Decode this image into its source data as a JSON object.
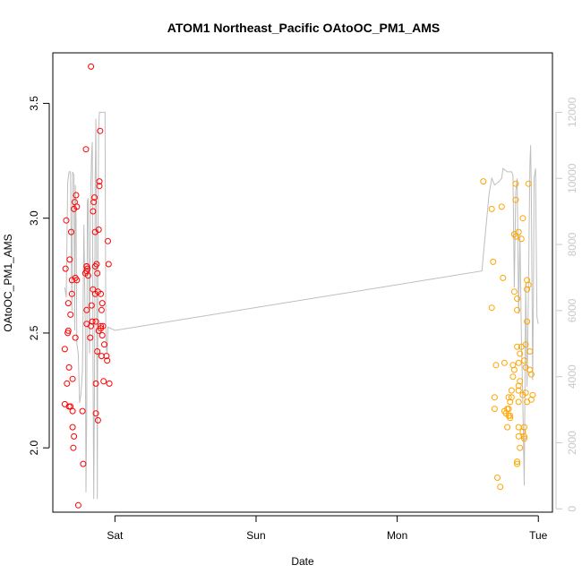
{
  "chart_data": {
    "type": "scatter",
    "title": "ATOM1 Northeast_Pacific OAtoOC_PM1_AMS",
    "xlabel": "Date",
    "ylabel": "OAtoOC_PM1_AMS",
    "x_ticks": [
      {
        "label": "Sat",
        "x": 0.0
      },
      {
        "label": "Sun",
        "x": 1.0
      },
      {
        "label": "Mon",
        "x": 2.0
      },
      {
        "label": "Tue",
        "x": 3.0
      }
    ],
    "xlim": [
      -0.44,
      3.1
    ],
    "ylim": [
      1.72,
      3.72
    ],
    "y_ticks": [
      "2.0",
      "2.5",
      "3.0",
      "3.5"
    ],
    "y2lim": [
      -100,
      13800
    ],
    "y2_ticks": [
      "0",
      "2000",
      "4000",
      "6000",
      "8000",
      "10000",
      "12000"
    ],
    "colors": {
      "red": "#ff0000",
      "orange": "#ffa500",
      "line": "#bebebe",
      "axis2": "#c8c8c8"
    },
    "series": [
      {
        "color": "red",
        "points": [
          [
            -0.355,
            2.19
          ],
          [
            -0.355,
            2.43
          ],
          [
            -0.35,
            2.78
          ],
          [
            -0.345,
            2.99
          ],
          [
            -0.34,
            2.28
          ],
          [
            -0.335,
            2.5
          ],
          [
            -0.33,
            2.51
          ],
          [
            -0.33,
            2.63
          ],
          [
            -0.325,
            2.35
          ],
          [
            -0.325,
            2.18
          ],
          [
            -0.32,
            2.82
          ],
          [
            -0.315,
            2.18
          ],
          [
            -0.315,
            2.58
          ],
          [
            -0.31,
            2.94
          ],
          [
            -0.305,
            2.73
          ],
          [
            -0.305,
            2.67
          ],
          [
            -0.3,
            2.3
          ],
          [
            -0.3,
            2.16
          ],
          [
            -0.3,
            2.09
          ],
          [
            -0.295,
            2.0
          ],
          [
            -0.29,
            2.05
          ],
          [
            -0.29,
            3.04
          ],
          [
            -0.285,
            3.07
          ],
          [
            -0.28,
            2.74
          ],
          [
            -0.28,
            2.48
          ],
          [
            -0.275,
            3.1
          ],
          [
            -0.27,
            3.05
          ],
          [
            -0.26,
            1.75
          ],
          [
            -0.23,
            2.16
          ],
          [
            -0.225,
            1.93
          ],
          [
            -0.21,
            2.76
          ],
          [
            -0.205,
            3.3
          ],
          [
            -0.2,
            2.77
          ],
          [
            -0.2,
            2.6
          ],
          [
            -0.2,
            2.54
          ],
          [
            -0.195,
            2.78
          ],
          [
            -0.19,
            2.75
          ],
          [
            -0.175,
            2.48
          ],
          [
            -0.17,
            2.53
          ],
          [
            -0.165,
            2.62
          ],
          [
            -0.16,
            2.55
          ],
          [
            -0.155,
            2.69
          ],
          [
            -0.155,
            3.03
          ],
          [
            -0.15,
            3.07
          ],
          [
            -0.145,
            3.09
          ],
          [
            -0.14,
            2.94
          ],
          [
            -0.14,
            2.67
          ],
          [
            -0.135,
            2.15
          ],
          [
            -0.135,
            2.28
          ],
          [
            -0.135,
            2.55
          ],
          [
            -0.13,
            2.8
          ],
          [
            -0.125,
            2.76
          ],
          [
            -0.125,
            2.42
          ],
          [
            -0.12,
            2.12
          ],
          [
            -0.115,
            2.95
          ],
          [
            -0.115,
            2.51
          ],
          [
            -0.11,
            3.14
          ],
          [
            -0.105,
            3.38
          ],
          [
            -0.1,
            2.67
          ],
          [
            -0.1,
            2.53
          ],
          [
            -0.095,
            2.6
          ],
          [
            -0.09,
            2.63
          ],
          [
            -0.085,
            2.53
          ],
          [
            -0.08,
            2.29
          ],
          [
            -0.075,
            2.45
          ],
          [
            -0.06,
            2.4
          ],
          [
            -0.055,
            2.38
          ],
          [
            -0.05,
            2.9
          ],
          [
            -0.045,
            2.8
          ],
          [
            -0.04,
            2.28
          ],
          [
            -0.17,
            3.66
          ],
          [
            -0.2,
            2.79
          ],
          [
            -0.12,
            2.68
          ],
          [
            -0.09,
            2.49
          ],
          [
            -0.11,
            3.16
          ],
          [
            -0.14,
            2.79
          ],
          [
            -0.1,
            2.52
          ],
          [
            -0.095,
            2.4
          ],
          [
            -0.27,
            2.73
          ],
          [
            -0.2,
            2.79
          ]
        ]
      },
      {
        "color": "orange",
        "points": [
          [
            2.61,
            3.16
          ],
          [
            2.67,
            3.04
          ],
          [
            2.68,
            2.81
          ],
          [
            2.67,
            2.61
          ],
          [
            2.69,
            2.22
          ],
          [
            2.69,
            2.17
          ],
          [
            2.7,
            2.36
          ],
          [
            2.71,
            1.87
          ],
          [
            2.73,
            1.83
          ],
          [
            2.74,
            3.05
          ],
          [
            2.75,
            2.74
          ],
          [
            2.76,
            2.37
          ],
          [
            2.76,
            2.16
          ],
          [
            2.77,
            2.15
          ],
          [
            2.78,
            2.09
          ],
          [
            2.79,
            2.14
          ],
          [
            2.79,
            2.17
          ],
          [
            2.79,
            2.22
          ],
          [
            2.8,
            2.13
          ],
          [
            2.8,
            2.14
          ],
          [
            2.8,
            2.2
          ],
          [
            2.81,
            2.22
          ],
          [
            2.82,
            2.36
          ],
          [
            2.82,
            2.31
          ],
          [
            2.83,
            2.34
          ],
          [
            2.83,
            2.68
          ],
          [
            2.83,
            2.93
          ],
          [
            2.84,
            3.15
          ],
          [
            2.84,
            3.08
          ],
          [
            2.84,
            2.92
          ],
          [
            2.85,
            2.65
          ],
          [
            2.85,
            2.6
          ],
          [
            2.85,
            2.44
          ],
          [
            2.86,
            2.37
          ],
          [
            2.86,
            2.27
          ],
          [
            2.86,
            2.25
          ],
          [
            2.86,
            2.2
          ],
          [
            2.86,
            2.09
          ],
          [
            2.86,
            2.05
          ],
          [
            2.87,
            2.0
          ],
          [
            2.87,
            2.29
          ],
          [
            2.87,
            2.41
          ],
          [
            2.88,
            2.44
          ],
          [
            2.88,
            2.91
          ],
          [
            2.89,
            3.0
          ],
          [
            2.89,
            2.07
          ],
          [
            2.9,
            2.05
          ],
          [
            2.9,
            2.04
          ],
          [
            2.9,
            2.38
          ],
          [
            2.91,
            2.24
          ],
          [
            2.91,
            2.35
          ],
          [
            2.91,
            2.45
          ],
          [
            2.92,
            2.55
          ],
          [
            2.92,
            2.69
          ],
          [
            2.92,
            2.73
          ],
          [
            2.93,
            3.15
          ],
          [
            2.93,
            2.71
          ],
          [
            2.94,
            2.34
          ],
          [
            2.94,
            2.42
          ],
          [
            2.95,
            2.32
          ],
          [
            2.95,
            2.21
          ],
          [
            2.96,
            2.23
          ],
          [
            2.85,
            1.94
          ],
          [
            2.85,
            1.93
          ],
          [
            2.86,
            2.94
          ],
          [
            2.78,
            2.17
          ],
          [
            2.81,
            2.25
          ],
          [
            2.89,
            2.23
          ],
          [
            2.9,
            2.09
          ],
          [
            2.92,
            2.2
          ]
        ]
      }
    ],
    "secondary_line": {
      "color": "line",
      "points": [
        [
          -0.355,
          6700
        ],
        [
          -0.345,
          6400
        ],
        [
          -0.335,
          9900
        ],
        [
          -0.325,
          10200
        ],
        [
          -0.315,
          10200
        ],
        [
          -0.305,
          6000
        ],
        [
          -0.3,
          10200
        ],
        [
          -0.29,
          10100
        ],
        [
          -0.285,
          5400
        ],
        [
          -0.28,
          9800
        ],
        [
          -0.275,
          8700
        ],
        [
          -0.27,
          5000
        ],
        [
          -0.26,
          4700
        ],
        [
          -0.25,
          3200
        ],
        [
          -0.24,
          3500
        ],
        [
          -0.23,
          4200
        ],
        [
          -0.22,
          8600
        ],
        [
          -0.21,
          5300
        ],
        [
          -0.205,
          500
        ],
        [
          -0.2,
          2800
        ],
        [
          -0.195,
          9300
        ],
        [
          -0.19,
          9400
        ],
        [
          -0.18,
          4700
        ],
        [
          -0.175,
          9000
        ],
        [
          -0.165,
          10700
        ],
        [
          -0.16,
          11100
        ],
        [
          -0.155,
          4300
        ],
        [
          -0.15,
          300
        ],
        [
          -0.145,
          3600
        ],
        [
          -0.14,
          10000
        ],
        [
          -0.135,
          11800
        ],
        [
          -0.13,
          7200
        ],
        [
          -0.125,
          300
        ],
        [
          -0.12,
          8000
        ],
        [
          -0.115,
          11500
        ],
        [
          -0.11,
          12000
        ],
        [
          -0.1,
          12000
        ],
        [
          -0.09,
          12000
        ],
        [
          -0.085,
          12000
        ],
        [
          -0.08,
          12000
        ],
        [
          -0.075,
          12000
        ],
        [
          -0.07,
          12000
        ],
        [
          -0.065,
          5600
        ],
        [
          -0.06,
          4800
        ],
        [
          -0.055,
          4700
        ],
        [
          -0.05,
          5500
        ],
        [
          0.0,
          5400
        ],
        [
          2.6,
          7200
        ],
        [
          2.65,
          9500
        ],
        [
          2.67,
          10000
        ],
        [
          2.69,
          9800
        ],
        [
          2.72,
          9900
        ],
        [
          2.74,
          10000
        ],
        [
          2.75,
          10300
        ],
        [
          2.78,
          10200
        ],
        [
          2.81,
          10200
        ],
        [
          2.82,
          10100
        ],
        [
          2.83,
          6700
        ],
        [
          2.84,
          9600
        ],
        [
          2.85,
          10000
        ],
        [
          2.86,
          5900
        ],
        [
          2.87,
          8300
        ],
        [
          2.88,
          5200
        ],
        [
          2.89,
          3200
        ],
        [
          2.9,
          700
        ],
        [
          2.91,
          6800
        ],
        [
          2.92,
          3700
        ],
        [
          2.93,
          6600
        ],
        [
          2.94,
          10400
        ],
        [
          2.945,
          11000
        ],
        [
          2.95,
          9600
        ],
        [
          2.96,
          3900
        ],
        [
          2.965,
          6200
        ],
        [
          2.97,
          10000
        ],
        [
          2.98,
          10300
        ],
        [
          2.99,
          5800
        ],
        [
          3.0,
          5600
        ]
      ]
    }
  }
}
